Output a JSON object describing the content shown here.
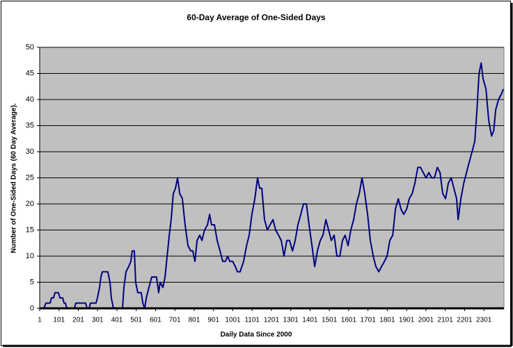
{
  "chart_data": {
    "type": "line",
    "title": "60-Day Average of One-Sided Days",
    "x_label": "Daily Data Since 2000",
    "y_label": "Number of One-Sided Days (60 Day Average).",
    "xlim": [
      1,
      2405
    ],
    "ylim": [
      0,
      50
    ],
    "xticks": [
      1,
      101,
      201,
      301,
      401,
      501,
      601,
      701,
      801,
      901,
      1001,
      1101,
      1201,
      1301,
      1401,
      1501,
      1601,
      1701,
      1801,
      1901,
      2001,
      2101,
      2201,
      2301
    ],
    "yticks": [
      0,
      5,
      10,
      15,
      20,
      25,
      30,
      35,
      40,
      45,
      50
    ],
    "grid": true,
    "series": [
      {
        "color": "#000080",
        "x": [
          1,
          23,
          33,
          55,
          62,
          73,
          80,
          98,
          106,
          120,
          127,
          134,
          142,
          181,
          188,
          239,
          246,
          257,
          264,
          293,
          300,
          311,
          318,
          325,
          354,
          365,
          372,
          383,
          430,
          437,
          448,
          462,
          473,
          480,
          491,
          498,
          509,
          527,
          535,
          545,
          553,
          567,
          581,
          606,
          617,
          625,
          639,
          650,
          661,
          672,
          682,
          693,
          704,
          715,
          726,
          740,
          754,
          769,
          783,
          794,
          805,
          816,
          830,
          841,
          855,
          870,
          881,
          891,
          906,
          920,
          935,
          949,
          963,
          974,
          985,
          1000,
          1014,
          1025,
          1039,
          1057,
          1072,
          1086,
          1100,
          1115,
          1129,
          1140,
          1151,
          1165,
          1180,
          1194,
          1209,
          1223,
          1238,
          1252,
          1266,
          1281,
          1295,
          1310,
          1324,
          1338,
          1353,
          1367,
          1382,
          1396,
          1411,
          1425,
          1439,
          1454,
          1468,
          1483,
          1497,
          1511,
          1526,
          1540,
          1555,
          1569,
          1583,
          1598,
          1612,
          1627,
          1641,
          1656,
          1670,
          1684,
          1699,
          1713,
          1728,
          1742,
          1757,
          1771,
          1786,
          1800,
          1814,
          1829,
          1843,
          1858,
          1872,
          1886,
          1901,
          1915,
          1930,
          1944,
          1959,
          1973,
          1987,
          2002,
          2016,
          2031,
          2045,
          2060,
          2074,
          2088,
          2103,
          2117,
          2132,
          2146,
          2160,
          2168,
          2182,
          2197,
          2211,
          2225,
          2240,
          2254,
          2265,
          2276,
          2287,
          2297,
          2312,
          2326,
          2341,
          2352,
          2362,
          2377,
          2391,
          2402
        ],
        "values": [
          0,
          0,
          1,
          1,
          2,
          2,
          3,
          3,
          2,
          2,
          1,
          1,
          0,
          0,
          1,
          1,
          0,
          0,
          1,
          1,
          2,
          4,
          6,
          7,
          7,
          5,
          2,
          0,
          0,
          4,
          7,
          8,
          9,
          11,
          11,
          5,
          3,
          3,
          1,
          0,
          2,
          4,
          6,
          6,
          3,
          5,
          4,
          6,
          10,
          14,
          17,
          22,
          23,
          25,
          22,
          21,
          16,
          12,
          11,
          11,
          9,
          13,
          14,
          13,
          15,
          16,
          18,
          16,
          16,
          13,
          11,
          9,
          9,
          10,
          9,
          9,
          8,
          7,
          7,
          9,
          12,
          14,
          18,
          21,
          25,
          23,
          23,
          17,
          15,
          16,
          17,
          15,
          14,
          13,
          10,
          13,
          13,
          11,
          13,
          16,
          18,
          20,
          20,
          16,
          12,
          8,
          11,
          13,
          14,
          17,
          15,
          13,
          14,
          10,
          10,
          13,
          14,
          12,
          15,
          17,
          20,
          22,
          25,
          22,
          18,
          13,
          10,
          8,
          7,
          8,
          9,
          10,
          13,
          14,
          19,
          21,
          19,
          18,
          19,
          21,
          22,
          24,
          27,
          27,
          26,
          25,
          26,
          25,
          25,
          27,
          26,
          22,
          21,
          24,
          25,
          23,
          21,
          17,
          21,
          24,
          26,
          28,
          30,
          32,
          38,
          45,
          47,
          44,
          42,
          36,
          33,
          34,
          38,
          40,
          41,
          42
        ]
      }
    ]
  }
}
